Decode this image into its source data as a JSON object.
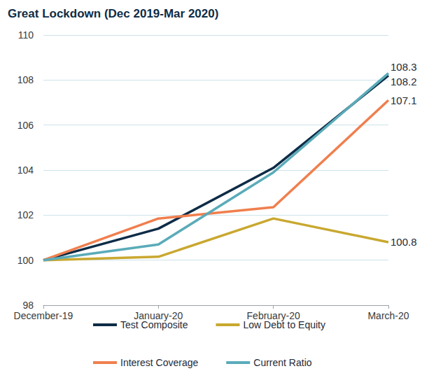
{
  "chart_data": {
    "type": "line",
    "title": "Great Lockdown (Dec 2019-Mar 2020)",
    "categories": [
      "December-19",
      "January-20",
      "February-20",
      "March-20"
    ],
    "series": [
      {
        "name": "Test Composite",
        "color": "#0e2c47",
        "values": [
          100,
          101.4,
          104.1,
          108.2
        ],
        "value_labels": [
          null,
          null,
          null,
          "108.2"
        ]
      },
      {
        "name": "Low Debt to Equity",
        "color": "#c9a830",
        "values": [
          100,
          100.15,
          101.85,
          100.8
        ],
        "value_labels": [
          null,
          null,
          null,
          "100.8"
        ]
      },
      {
        "name": "Interest Coverage",
        "color": "#f07f4e",
        "values": [
          100,
          101.85,
          102.35,
          107.1
        ],
        "value_labels": [
          null,
          null,
          null,
          "107.1"
        ]
      },
      {
        "name": "Current Ratio",
        "color": "#5aabb9",
        "values": [
          100,
          100.7,
          103.9,
          108.3
        ],
        "value_labels": [
          null,
          null,
          null,
          "108.3"
        ]
      }
    ],
    "ylim": [
      98,
      110
    ],
    "yticks": [
      98,
      100,
      102,
      104,
      106,
      108,
      110
    ],
    "grid": true,
    "legend": "bottom",
    "data_labels": true
  }
}
